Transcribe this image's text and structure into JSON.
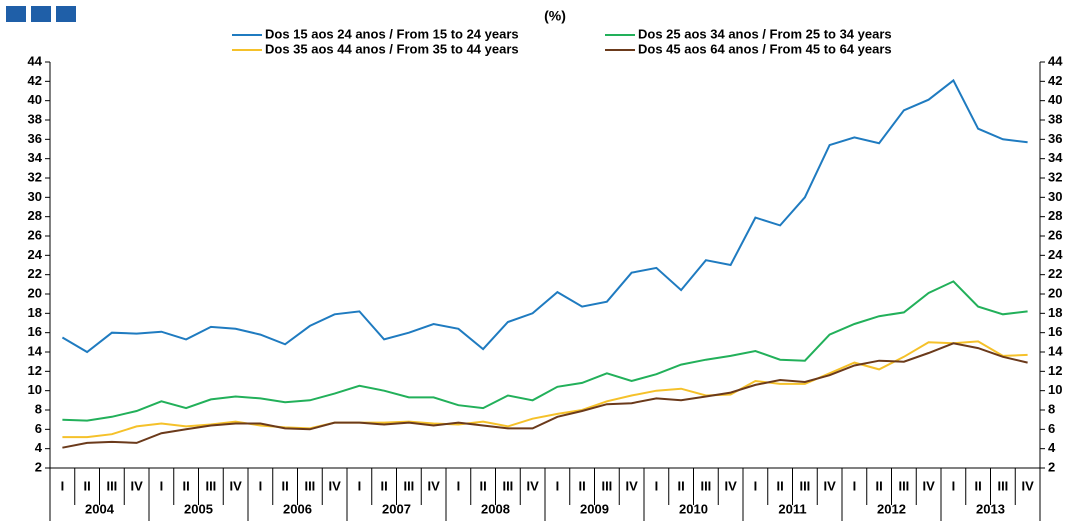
{
  "chart_data": {
    "type": "line",
    "subtitle": "(%)",
    "categories": [
      "I",
      "II",
      "III",
      "IV",
      "I",
      "II",
      "III",
      "IV",
      "I",
      "II",
      "III",
      "IV",
      "I",
      "II",
      "III",
      "IV",
      "I",
      "II",
      "III",
      "IV",
      "I",
      "II",
      "III",
      "IV",
      "I",
      "II",
      "III",
      "IV",
      "I",
      "II",
      "III",
      "IV",
      "I",
      "II",
      "III",
      "IV",
      "I",
      "II",
      "III",
      "IV"
    ],
    "year_groups": [
      "2004",
      "2005",
      "2006",
      "2007",
      "2008",
      "2009",
      "2010",
      "2011",
      "2012",
      "2013"
    ],
    "series": [
      {
        "name": "Dos 15 aos 24 anos / From 15 to 24 years",
        "color": "#1f7bc0",
        "values": [
          15.5,
          14.0,
          16.0,
          15.9,
          16.1,
          15.3,
          16.6,
          16.4,
          15.8,
          14.8,
          16.7,
          17.9,
          18.2,
          15.3,
          16.0,
          16.9,
          16.4,
          14.3,
          17.1,
          18.0,
          20.2,
          18.7,
          19.2,
          22.2,
          22.7,
          20.4,
          23.5,
          23.0,
          27.9,
          27.1,
          30.0,
          35.4,
          36.2,
          35.6,
          39.0,
          40.1,
          42.1,
          37.1,
          36.0,
          35.7
        ]
      },
      {
        "name": "Dos 25 aos 34 anos / From 25 to 34 years",
        "color": "#22b05a",
        "values": [
          7.0,
          6.9,
          7.3,
          7.9,
          8.9,
          8.2,
          9.1,
          9.4,
          9.2,
          8.8,
          9.0,
          9.7,
          10.5,
          10.0,
          9.3,
          9.3,
          8.5,
          8.2,
          9.5,
          9.0,
          10.4,
          10.8,
          11.8,
          11.0,
          11.7,
          12.7,
          13.2,
          13.6,
          14.1,
          13.2,
          13.1,
          15.8,
          16.9,
          17.7,
          18.1,
          20.1,
          21.3,
          18.7,
          17.9,
          18.2
        ]
      },
      {
        "name": "Dos 35 aos 44 anos / From 35 to 44 years",
        "color": "#f5c12a",
        "values": [
          5.2,
          5.2,
          5.5,
          6.3,
          6.6,
          6.3,
          6.5,
          6.8,
          6.4,
          6.2,
          6.1,
          6.7,
          6.7,
          6.7,
          6.8,
          6.6,
          6.5,
          6.8,
          6.3,
          7.1,
          7.6,
          8.0,
          8.9,
          9.5,
          10.0,
          10.2,
          9.5,
          9.6,
          11.0,
          10.7,
          10.7,
          11.8,
          12.9,
          12.2,
          13.5,
          15.0,
          14.9,
          15.1,
          13.6,
          13.7
        ]
      },
      {
        "name": "Dos 45 aos 64 anos / From 45 to 64 years",
        "color": "#6b3a1b",
        "values": [
          4.1,
          4.6,
          4.7,
          4.6,
          5.6,
          6.0,
          6.4,
          6.6,
          6.6,
          6.1,
          6.0,
          6.7,
          6.7,
          6.5,
          6.7,
          6.4,
          6.7,
          6.4,
          6.1,
          6.1,
          7.3,
          7.9,
          8.6,
          8.7,
          9.2,
          9.0,
          9.4,
          9.8,
          10.6,
          11.1,
          10.9,
          11.6,
          12.6,
          13.1,
          13.0,
          13.9,
          14.9,
          14.4,
          13.5,
          12.9
        ]
      }
    ],
    "ylim": [
      2,
      44
    ],
    "yticks": [
      2,
      4,
      6,
      8,
      10,
      12,
      14,
      16,
      18,
      20,
      22,
      24,
      26,
      28,
      30,
      32,
      34,
      36,
      38,
      40,
      42,
      44
    ],
    "y2lim": [
      2,
      44
    ],
    "y2ticks": [
      2,
      4,
      6,
      8,
      10,
      12,
      14,
      16,
      18,
      20,
      22,
      24,
      26,
      28,
      30,
      32,
      34,
      36,
      38,
      40,
      42,
      44
    ]
  }
}
